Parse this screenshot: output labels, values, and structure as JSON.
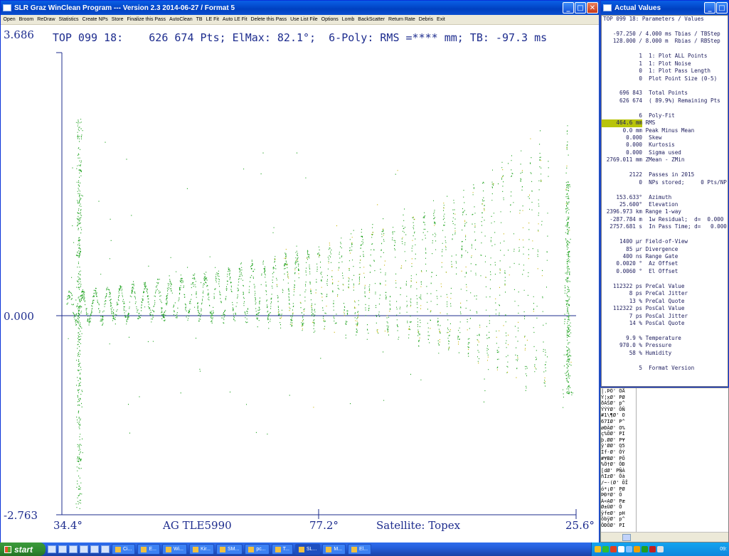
{
  "plot_window": {
    "title": "SLR Graz WinClean Program --- Version 2.3 2014-06-27 / Format 5",
    "menu": [
      "Open",
      "Broom",
      "ReDraw",
      "Statistics",
      "Create NPs",
      "Store",
      "Finalize this Pass",
      "AutoClean",
      "TB",
      "LE Fit",
      "Auto LE Fit",
      "Delete this Pass",
      "Use List File",
      "Options",
      "Lomb",
      "BackScatter",
      "Return Rate",
      "Debris",
      "Exit"
    ],
    "header": "TOP 099 18:    626 674 Pts; ElMax: 82.1°;  6-Poly: RMS =**** mm; TB: -97.3 ms",
    "y_max_label": "3.686",
    "y_mid_label": "0.000",
    "y_min_label": "-2.763",
    "x_left_label": "34.4°",
    "x_mid_label": "77.2°",
    "x_right_label": "25.6°",
    "footer_left": "AG TLE5990",
    "footer_right": "Satellite: Topex",
    "colors": {
      "axis": "#1d2c8e",
      "points": "#1aa01a",
      "outliers": "#c8b400"
    }
  },
  "values_window": {
    "title": "Actual Values",
    "heading": "TOP 099 18: Parameters / Values",
    "rows": [
      {
        "gap": true
      },
      {
        "val": "-97.250 /",
        "txt": " 4.000 ms Tbias / TBStep"
      },
      {
        "val": "128.000 /",
        "txt": " 8.000 m  Rbias / RBStep"
      },
      {
        "gap": true
      },
      {
        "val": "1",
        "txt": "  1: Plot ALL Points"
      },
      {
        "val": "1",
        "txt": "  1: Plot Noise"
      },
      {
        "val": "0",
        "txt": "  1: Plot Pass Length"
      },
      {
        "val": "0",
        "txt": "  Plot Point Size (0-5)"
      },
      {
        "gap": true
      },
      {
        "val": "696 843",
        "txt": "  Total Points"
      },
      {
        "val": "626 674",
        "txt": "  ( 89.9%) Remaining Pts"
      },
      {
        "gap": true
      },
      {
        "val": "6",
        "txt": "  Poly-Fit"
      },
      {
        "val": "464.6 mm",
        "txt": " RMS",
        "hl": true
      },
      {
        "val": "0.0 mm",
        "txt": " Peak Minus Mean"
      },
      {
        "val": "0.000",
        "txt": "  Skew"
      },
      {
        "val": "0.000",
        "txt": "  Kurtosis"
      },
      {
        "val": "0.000",
        "txt": "  Sigma used"
      },
      {
        "val": "2769.011 mm",
        "txt": " ZMean - ZMin"
      },
      {
        "gap": true
      },
      {
        "val": "2122",
        "txt": "  Passes in 2015"
      },
      {
        "val": "0",
        "txt": "  NPs stored;     0 Pts/NP"
      },
      {
        "gap": true
      },
      {
        "val": "153.633°",
        "txt": "  Azimuth"
      },
      {
        "val": "25.600°",
        "txt": "  Elevation"
      },
      {
        "val": "2396.973 km",
        "txt": " Range 1-way"
      },
      {
        "val": "-287.784 m",
        "txt": "  1w Residual;  d=  0.000"
      },
      {
        "val": "2757.681 s",
        "txt": "  In Pass Time; d=   0.000"
      },
      {
        "gap": true
      },
      {
        "val": "1400 µr",
        "txt": " Field-of-View"
      },
      {
        "val": "85 µr",
        "txt": " Divergence"
      },
      {
        "val": "400 ns",
        "txt": " Range Gate"
      },
      {
        "val": "0.0020 °",
        "txt": "  Az Offset"
      },
      {
        "val": "0.0060 °",
        "txt": "  El Offset"
      },
      {
        "gap": true
      },
      {
        "val": "112322 ps",
        "txt": " PreCal Value"
      },
      {
        "val": "8 ps",
        "txt": " PreCal Jitter"
      },
      {
        "val": "13 %",
        "txt": " PreCal Quote"
      },
      {
        "val": "112322 ps",
        "txt": " PosCal Value"
      },
      {
        "val": "7 ps",
        "txt": " PosCal Jitter"
      },
      {
        "val": "14 %",
        "txt": " PosCal Quote"
      },
      {
        "gap": true
      },
      {
        "val": "9.9 %",
        "txt": " Temperature"
      },
      {
        "val": "970.0 %",
        "txt": " Pressure"
      },
      {
        "val": "58 %",
        "txt": " Humidity"
      },
      {
        "gap": true
      },
      {
        "val": "5",
        "txt": "  Format Version"
      }
    ]
  },
  "log_window": {
    "lines": [
      "|.ÞÖ' ÔÅ",
      "Ý¦xØ' PØ",
      "ðÀŠØ' p^",
      "ÝÝÝØ' ÕÑ",
      "#1\\¶Ø' O",
      "67IØ' P^",
      "øÐÄØ' O%",
      "ç%ÕØ' PI",
      "þ.ØØ' P¥",
      "ÿ'ØØ' Q5",
      "Ìf-Ø' ÔÝ",
      "#¥BØ' PÕ",
      "%Ö†Ø' ÕÐ",
      "[dØ' PÑÀ",
      "ñIzØ' Õà",
      "/~-(Ø' ÕÎ",
      "ó*¡Ø' PØ",
      "ÞÐªØ' Õ",
      "À«AØ' Pæ",
      "Ø±ÚØ' Ô",
      "ÿfeØ' pH",
      "õbÿØ' p^",
      "ÕÐÕØ' PI"
    ]
  },
  "taskbar": {
    "start_label": "start",
    "tasks": [
      "Ci...",
      "E...",
      "Wi...",
      "Kir...",
      "SM...",
      "pc...",
      "T...",
      "SL...",
      "M...",
      "El..."
    ],
    "active_task": "SL...",
    "clock": "09:"
  }
}
